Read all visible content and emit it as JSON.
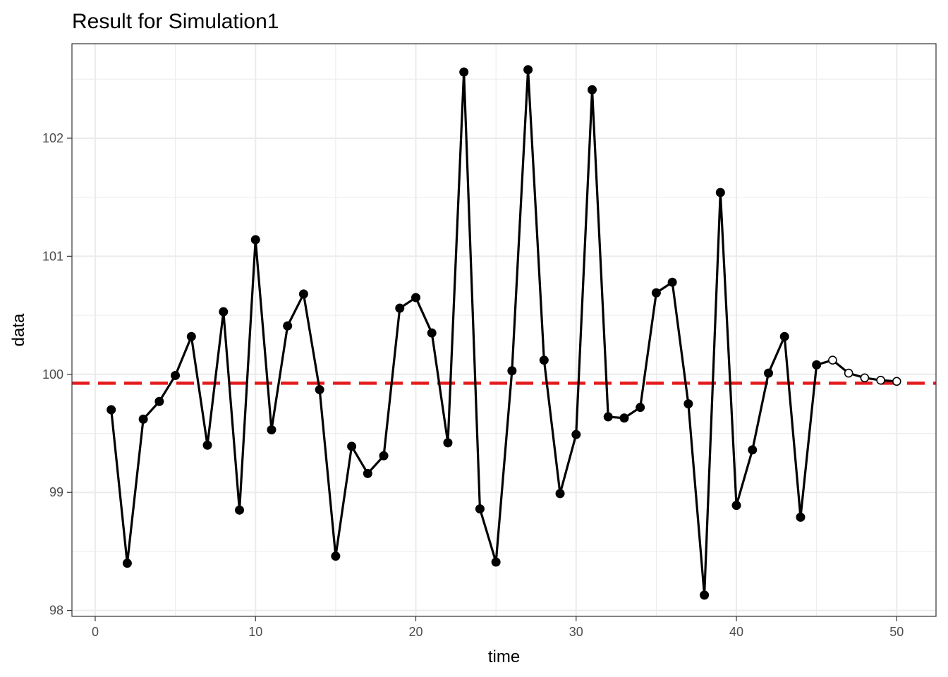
{
  "chart_data": {
    "type": "line",
    "title": "Result for Simulation1",
    "xlabel": "time",
    "ylabel": "data",
    "xlim": [
      -1.45,
      52.45
    ],
    "ylim": [
      97.95,
      102.8
    ],
    "x_ticks": [
      0,
      10,
      20,
      30,
      40,
      50
    ],
    "y_ticks": [
      98,
      99,
      100,
      101,
      102
    ],
    "x_tick_labels": [
      "0",
      "10",
      "20",
      "30",
      "40",
      "50"
    ],
    "y_tick_labels": [
      "98",
      "99",
      "100",
      "101",
      "102"
    ],
    "grid": true,
    "series": [
      {
        "style": "observed",
        "marker": "filled-circle",
        "x": [
          1,
          2,
          3,
          4,
          5,
          6,
          7,
          8,
          9,
          10,
          11,
          12,
          13,
          14,
          15,
          16,
          17,
          18,
          19,
          20,
          21,
          22,
          23,
          24,
          25,
          26,
          27,
          28,
          29,
          30,
          31,
          32,
          33,
          34,
          35,
          36,
          37,
          38,
          39,
          40,
          41,
          42,
          43,
          44,
          45
        ],
        "y": [
          99.7,
          98.4,
          99.62,
          99.77,
          99.99,
          100.32,
          99.4,
          100.53,
          98.85,
          101.14,
          99.53,
          100.41,
          100.68,
          99.87,
          98.46,
          99.39,
          99.16,
          99.31,
          100.56,
          100.65,
          100.35,
          99.42,
          102.56,
          98.86,
          98.41,
          100.03,
          102.58,
          100.12,
          98.99,
          99.49,
          102.41,
          99.64,
          99.63,
          99.72,
          100.69,
          100.78,
          99.75,
          98.13,
          101.54,
          98.89,
          99.36,
          100.01,
          100.32,
          98.79,
          100.08
        ]
      },
      {
        "style": "forecast",
        "marker": "open-circle",
        "x": [
          45,
          46,
          47,
          48,
          49,
          50
        ],
        "y": [
          100.08,
          100.12,
          100.01,
          99.97,
          99.95,
          99.94
        ]
      }
    ],
    "reference_line": {
      "orientation": "horizontal",
      "y": 99.925,
      "style": "dashed",
      "color": "#e41a1c"
    },
    "colors": {
      "line": "#000000",
      "grid": "#ebebeb",
      "panel_border": "#333333",
      "reference": "#e41a1c"
    }
  }
}
